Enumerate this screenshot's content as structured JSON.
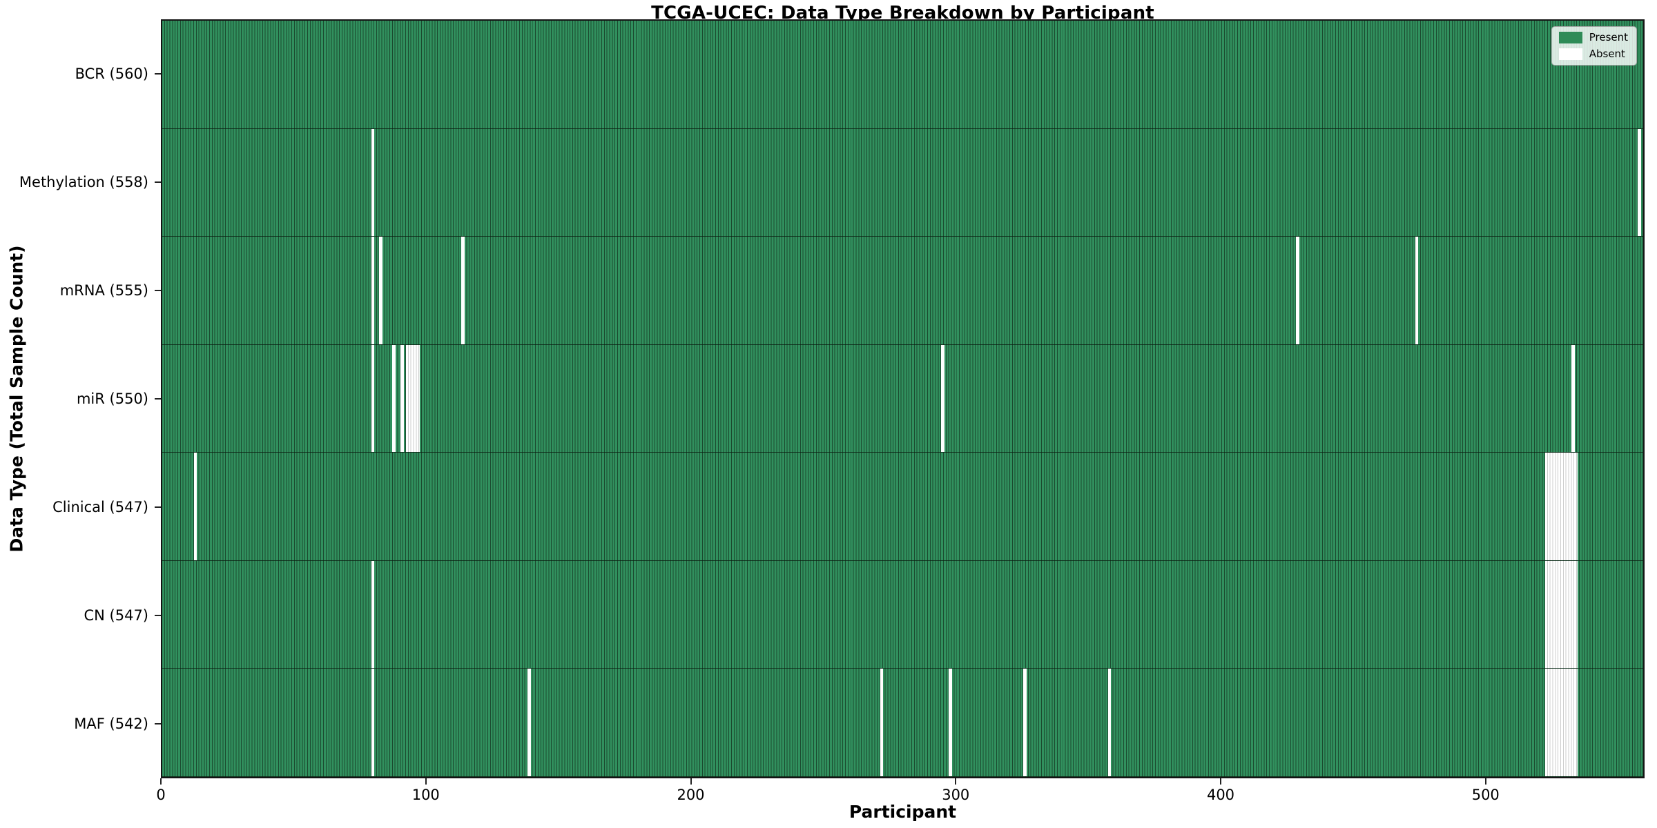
{
  "chart_data": {
    "type": "heatmap",
    "title": "TCGA-UCEC: Data Type Breakdown by Participant",
    "xlabel": "Participant",
    "ylabel": "Data Type (Total Sample Count)",
    "n_participants": 560,
    "x_ticks": [
      0,
      100,
      200,
      300,
      400,
      500
    ],
    "legend": [
      {
        "label": "Present",
        "color": "#2e8b57"
      },
      {
        "label": "Absent",
        "color": "#ffffff"
      }
    ],
    "colors": {
      "present_fill": "#31905e",
      "bar_edge": "#1b4a2f",
      "absent_fill": "#ffffff",
      "absent_edge": "#cccccc",
      "plot_frame": "#141414"
    },
    "rows": [
      {
        "label": "BCR (560)",
        "data_type": "BCR",
        "present_count": 560,
        "absent_participants": []
      },
      {
        "label": "Methylation (558)",
        "data_type": "Methylation",
        "present_count": 558,
        "absent_participants": [
          79,
          557
        ]
      },
      {
        "label": "mRNA (555)",
        "data_type": "mRNA",
        "present_count": 555,
        "absent_participants": [
          79,
          82,
          113,
          428,
          473
        ]
      },
      {
        "label": "miR (550)",
        "data_type": "miR",
        "present_count": 550,
        "absent_participants": [
          79,
          87,
          90,
          92,
          93,
          94,
          95,
          96,
          294,
          532
        ]
      },
      {
        "label": "Clinical (547)",
        "data_type": "Clinical",
        "present_count": 547,
        "absent_participants": [
          12,
          522,
          523,
          524,
          525,
          526,
          527,
          528,
          529,
          530,
          531,
          532,
          533
        ]
      },
      {
        "label": "CN (547)",
        "data_type": "CN",
        "present_count": 547,
        "absent_participants": [
          79,
          522,
          523,
          524,
          525,
          526,
          527,
          528,
          529,
          530,
          531,
          532,
          533
        ]
      },
      {
        "label": "MAF (542)",
        "data_type": "MAF",
        "present_count": 542,
        "absent_participants": [
          79,
          138,
          271,
          297,
          325,
          357,
          522,
          523,
          524,
          525,
          526,
          527,
          528,
          529,
          530,
          531,
          532,
          533
        ]
      }
    ]
  }
}
